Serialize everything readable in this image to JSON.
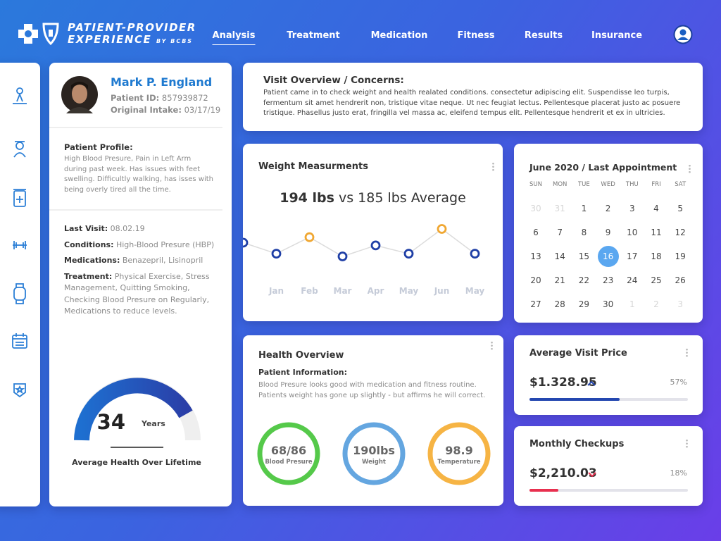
{
  "header": {
    "brand_line1": "PATIENT-PROVIDER",
    "brand_line2": "EXPERIENCE",
    "brand_by": "BY BCBS",
    "nav": [
      "Analysis",
      "Treatment",
      "Medication",
      "Fitness",
      "Results",
      "Insurance"
    ]
  },
  "profile": {
    "name": "Mark P. England",
    "patient_id_label": "Patient ID:",
    "patient_id": "857939872",
    "intake_label": "Original Intake:",
    "intake": "03/17/19",
    "profile_title": "Patient Profile:",
    "profile_text": "High Blood Presure, Pain in Left Arm during past week. Has issues with feet swelling. Difficultly walking, has isses with being overly tired all the time.",
    "details": [
      {
        "label": "Last Visit:",
        "value": "08.02.19"
      },
      {
        "label": "Conditions:",
        "value": "High-Blood Presure (HBP)"
      },
      {
        "label": "Medications:",
        "value": "Benazepril, Lisinopril"
      },
      {
        "label": "Treatment:",
        "value": "Physical Exercise, Stress Management, Quitting Smoking, Checking Blood Presure on Regularly, Medications to reduce levels."
      }
    ],
    "gauge": {
      "value": 34,
      "unit": "Years",
      "caption": "Average Health Over Lifetime"
    }
  },
  "visit_overview": {
    "title": "Visit Overview / Concerns:",
    "text": "Patient came in to check weight and health realated conditions. consectetur adipiscing elit. Suspendisse leo turpis, fermentum sit amet hendrerit non, tristique vitae neque. Ut nec feugiat lectus. Pellentesque placerat justo ac posuere tristique. Phasellus justo erat, fringilla vel massa ac, eleifend tempus elit. Pellentesque hendrerit et ex in ultricies."
  },
  "weight": {
    "title": "Weight Measurments",
    "headline_bold": "194 lbs",
    "headline_rest": "vs 185 lbs Average",
    "chart": {
      "type": "line",
      "categories": [
        null,
        "Jan",
        "Feb",
        "Mar",
        "Apr",
        "May",
        "Jun",
        "May"
      ],
      "values": [
        189,
        185,
        191,
        184,
        188,
        185,
        194,
        185
      ],
      "color": "#1f3fa6",
      "point_colors": [
        "#1f3fa6",
        "#1f3fa6",
        "#f0a732",
        "#1f3fa6",
        "#1f3fa6",
        "#1f3fa6",
        "#f0a732",
        "#1f3fa6"
      ]
    }
  },
  "calendar": {
    "title": "June 2020 / Last Appointment",
    "weekdays": [
      "SUN",
      "MON",
      "TUE",
      "WED",
      "THU",
      "FRI",
      "SAT"
    ],
    "weeks": [
      [
        30,
        31,
        1,
        2,
        3,
        4,
        5
      ],
      [
        6,
        7,
        8,
        9,
        10,
        11,
        12
      ],
      [
        13,
        14,
        15,
        16,
        17,
        18,
        19
      ],
      [
        20,
        21,
        22,
        23,
        24,
        25,
        26
      ],
      [
        27,
        28,
        29,
        30,
        1,
        2,
        3
      ]
    ]
  },
  "health": {
    "title": "Health Overview",
    "subtitle": "Patient Information:",
    "text": "Blood Presure looks good with medication and fitness routine. Patients weight has gone up slightly - but affirms he will correct.",
    "metrics": [
      {
        "value": "68/86",
        "label": "Blood Presure",
        "color": "#55c94a"
      },
      {
        "value": "190lbs",
        "label": "Weight",
        "color": "#64a6e0"
      },
      {
        "value": "98.9",
        "label": "Temperature",
        "color": "#f6b444"
      }
    ]
  },
  "price": {
    "title": "Average Visit Price",
    "amount": "$1.328.95",
    "progress": 57,
    "progress_label": "57%",
    "color": "#2447b0"
  },
  "checkups": {
    "title": "Monthly Checkups",
    "amount": "$2,210.03",
    "progress": 18,
    "progress_label": "18%",
    "color": "#e8304f"
  }
}
